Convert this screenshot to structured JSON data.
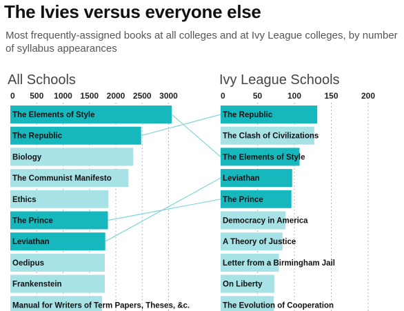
{
  "title": "The Ivies versus everyone else",
  "subtitle": "Most frequently-assigned books at all colleges and at Ivy League colleges, by number of syllabus appearances",
  "colors": {
    "highlight": "#17b8bd",
    "normal": "#a6e2e6",
    "grid": "#b7b7b7",
    "connector": "#7fd4d8"
  },
  "chart_data": [
    {
      "type": "bar",
      "orientation": "horizontal",
      "title": "All Schools",
      "xlim": [
        0,
        3000
      ],
      "ticks": [
        0,
        500,
        1000,
        1500,
        2000,
        2500,
        3000
      ],
      "grid": true,
      "categories": [
        "The Elements of Style",
        "The Republic",
        "Biology",
        "The Communist Manifesto",
        "Ethics",
        "The Prince",
        "Leviathan",
        "Oedipus",
        "Frankenstein",
        "Manual for Writers of Term Papers, Theses, &c."
      ],
      "values": [
        3060,
        2480,
        2330,
        2240,
        1860,
        1850,
        1800,
        1790,
        1790,
        1740
      ],
      "highlighted": [
        true,
        true,
        false,
        false,
        false,
        true,
        true,
        false,
        false,
        false
      ]
    },
    {
      "type": "bar",
      "orientation": "horizontal",
      "title": "Ivy League Schools",
      "xlim": [
        0,
        200
      ],
      "ticks": [
        0,
        50,
        100,
        150,
        200
      ],
      "grid": true,
      "categories": [
        "The Republic",
        "The Clash of Civilizations",
        "The Elements of Style",
        "Leviathan",
        "The Prince",
        "Democracy in America",
        "A Theory of Justice",
        "Letter from a Birmingham Jail",
        "On Liberty",
        "The Evolution of Cooperation"
      ],
      "values": [
        131,
        127,
        107,
        97,
        96,
        88,
        84,
        79,
        73,
        72
      ],
      "highlighted": [
        true,
        false,
        true,
        true,
        true,
        false,
        false,
        false,
        false,
        false
      ]
    }
  ]
}
